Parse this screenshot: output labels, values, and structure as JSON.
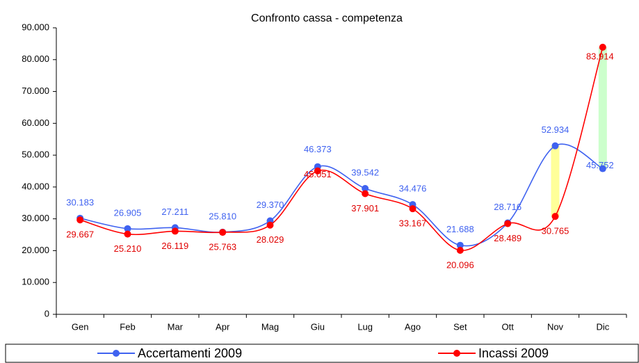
{
  "chart_data": {
    "type": "line",
    "title": "Confronto cassa - competenza",
    "categories": [
      "Gen",
      "Feb",
      "Mar",
      "Apr",
      "Mag",
      "Giu",
      "Lug",
      "Ago",
      "Set",
      "Ott",
      "Nov",
      "Dic"
    ],
    "series": [
      {
        "name": "Accertamenti 2009",
        "color": "#3f62f0",
        "values": [
          30183,
          26905,
          27211,
          25810,
          29370,
          46373,
          39542,
          34476,
          21688,
          28716,
          52934,
          45752
        ],
        "value_labels": [
          "30.183",
          "26.905",
          "27.211",
          "25.810",
          "29.370",
          "46.373",
          "39.542",
          "34.476",
          "21.688",
          "28.716",
          "52.934",
          "45.752"
        ]
      },
      {
        "name": "Incassi 2009",
        "color": "#ff0000",
        "values": [
          29667,
          25210,
          26119,
          25763,
          28029,
          45051,
          37901,
          33167,
          20096,
          28489,
          30765,
          83914
        ],
        "value_labels": [
          "29.667",
          "25.210",
          "26.119",
          "25.763",
          "28.029",
          "45.051",
          "37.901",
          "33.167",
          "20.096",
          "28.489",
          "30.765",
          "83.914"
        ]
      }
    ],
    "ylim": [
      0,
      90000
    ],
    "yticks": [
      0,
      {
        "value": 10000,
        "label": "10.000"
      },
      {
        "value": 20000,
        "label": "20.000"
      },
      {
        "value": 30000,
        "label": "30.000"
      },
      {
        "value": 40000,
        "label": "40.000"
      },
      {
        "value": 50000,
        "label": "50.000"
      },
      {
        "value": 60000,
        "label": "60.000"
      },
      {
        "value": 70000,
        "label": "70.000"
      },
      {
        "value": 80000,
        "label": "80.000"
      },
      {
        "value": 90000,
        "label": "90.000"
      }
    ],
    "grid": false,
    "legend": "bottom"
  }
}
